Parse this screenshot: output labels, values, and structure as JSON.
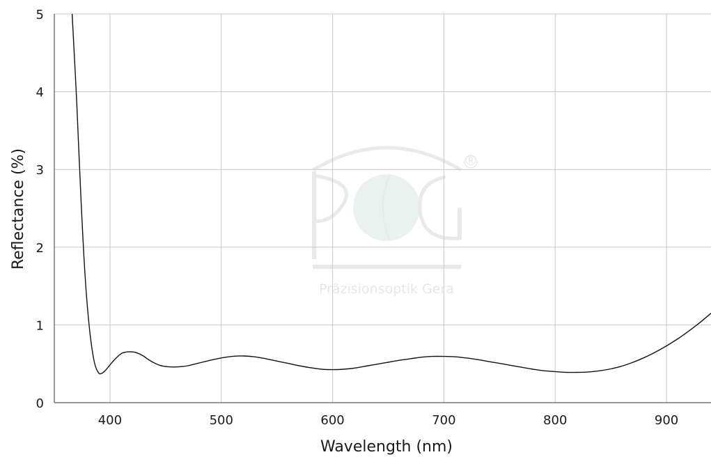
{
  "chart_data": {
    "type": "line",
    "xlabel": "Wavelength (nm)",
    "ylabel": "Reflectance (%)",
    "xlim": [
      350,
      940
    ],
    "ylim": [
      0,
      5
    ],
    "x_ticks": [
      400,
      500,
      600,
      700,
      800,
      900
    ],
    "y_ticks": [
      0,
      1,
      2,
      3,
      4,
      5
    ],
    "grid": true,
    "line_color": "#111111",
    "series": [
      {
        "x": [
          366,
          370,
          374,
          378,
          382,
          386,
          390,
          394,
          398,
          402,
          406,
          410,
          414,
          418,
          422,
          426,
          430,
          435,
          440,
          445,
          450,
          455,
          460,
          465,
          470,
          480,
          490,
          500,
          510,
          520,
          530,
          540,
          550,
          560,
          570,
          580,
          590,
          600,
          610,
          620,
          630,
          640,
          650,
          660,
          670,
          680,
          690,
          700,
          710,
          720,
          730,
          740,
          750,
          760,
          770,
          780,
          790,
          800,
          810,
          820,
          830,
          840,
          850,
          860,
          870,
          880,
          890,
          900,
          910,
          920,
          930,
          940
        ],
        "y": [
          5.0,
          3.9,
          2.6,
          1.55,
          0.9,
          0.52,
          0.38,
          0.39,
          0.45,
          0.52,
          0.58,
          0.63,
          0.65,
          0.655,
          0.65,
          0.63,
          0.6,
          0.55,
          0.51,
          0.48,
          0.465,
          0.46,
          0.46,
          0.465,
          0.475,
          0.51,
          0.545,
          0.575,
          0.595,
          0.6,
          0.59,
          0.565,
          0.535,
          0.505,
          0.475,
          0.45,
          0.43,
          0.425,
          0.43,
          0.445,
          0.47,
          0.495,
          0.52,
          0.545,
          0.565,
          0.585,
          0.595,
          0.595,
          0.59,
          0.575,
          0.555,
          0.53,
          0.505,
          0.48,
          0.455,
          0.43,
          0.41,
          0.4,
          0.39,
          0.39,
          0.395,
          0.41,
          0.435,
          0.47,
          0.52,
          0.58,
          0.65,
          0.73,
          0.82,
          0.92,
          1.03,
          1.15
        ]
      }
    ]
  },
  "watermark": {
    "logo_letters": "POG",
    "registered_mark": "®",
    "caption": "Präzisionsoptik Gera"
  }
}
